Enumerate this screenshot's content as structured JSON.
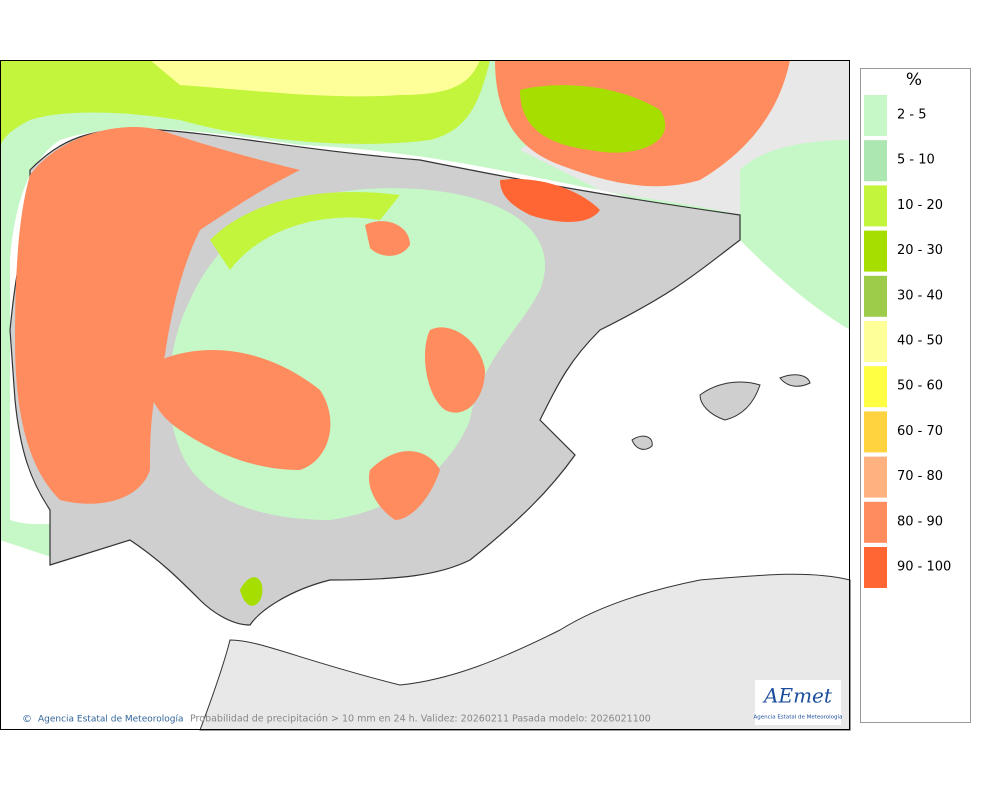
{
  "legend": {
    "title": "%",
    "items": [
      {
        "label": "2 - 5",
        "color": "#c6f7c6"
      },
      {
        "label": "5 - 10",
        "color": "#ace6b0"
      },
      {
        "label": "10 - 20",
        "color": "#c2f53c"
      },
      {
        "label": "20 - 30",
        "color": "#a6de00"
      },
      {
        "label": "30 - 40",
        "color": "#9ccc4a"
      },
      {
        "label": "40 - 50",
        "color": "#ffff99"
      },
      {
        "label": "50 - 60",
        "color": "#ffff44"
      },
      {
        "label": "60 - 70",
        "color": "#ffd23f"
      },
      {
        "label": "70 - 80",
        "color": "#ffb27f"
      },
      {
        "label": "80 - 90",
        "color": "#ff8c5f"
      },
      {
        "label": "90 - 100",
        "color": "#ff6633"
      }
    ]
  },
  "footer": {
    "credit": "Agencia Estatal de Meteorología",
    "caption": "Probabilidad de precipitación > 10 mm en 24 h. Validez: 20260211 Pasada modelo: 2026021100"
  },
  "logo": {
    "name": "AEmet",
    "subtitle": "Agencia Estatal de Meteorología"
  }
}
